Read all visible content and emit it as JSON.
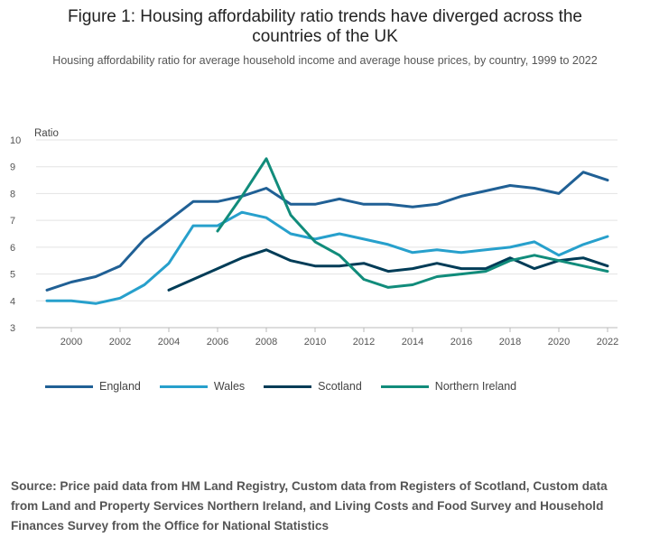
{
  "title_lines": [
    "Figure 1: Housing affordability ratio trends have diverged across the",
    "countries of the UK"
  ],
  "subtitle": "Housing affordability ratio for average household income and average house prices, by country, 1999 to 2022",
  "source": "Source: Price paid data from HM Land Registry, Custom data from Registers of Scotland, Custom data from Land and Property Services Northern Ireland, and Living Costs and Food Survey and Household Finances Survey from the Office for National Statistics",
  "chart_data": {
    "type": "line",
    "title": "Figure 1: Housing affordability ratio trends have diverged across the countries of the UK",
    "subtitle": "Housing affordability ratio for average household income and average house prices, by country, 1999 to 2022",
    "ylabel": "Ratio",
    "xlabel": "",
    "ylim": [
      3,
      10
    ],
    "xlim": [
      1999,
      2022
    ],
    "yticks": [
      "3",
      "4",
      "5",
      "6",
      "7",
      "8",
      "9",
      "10"
    ],
    "xticks": [
      "2000",
      "2002",
      "2004",
      "2006",
      "2008",
      "2010",
      "2012",
      "2014",
      "2016",
      "2018",
      "2020",
      "2022"
    ],
    "grid": "horizontal",
    "legend_position": "bottom-left",
    "x": [
      1999,
      2000,
      2001,
      2002,
      2003,
      2004,
      2005,
      2006,
      2007,
      2008,
      2009,
      2010,
      2011,
      2012,
      2013,
      2014,
      2015,
      2016,
      2017,
      2018,
      2019,
      2020,
      2021,
      2022
    ],
    "series": [
      {
        "name": "England",
        "color": "#206095",
        "values": [
          4.4,
          4.7,
          4.9,
          5.3,
          6.3,
          7.0,
          7.7,
          7.7,
          7.9,
          8.2,
          7.6,
          7.6,
          7.8,
          7.6,
          7.6,
          7.5,
          7.6,
          7.9,
          8.1,
          8.3,
          8.2,
          8.0,
          8.8,
          8.5
        ]
      },
      {
        "name": "Wales",
        "color": "#27a0cc",
        "values": [
          4.0,
          4.0,
          3.9,
          4.1,
          4.6,
          5.4,
          6.8,
          6.8,
          7.3,
          7.1,
          6.5,
          6.3,
          6.5,
          6.3,
          6.1,
          5.8,
          5.9,
          5.8,
          5.9,
          6.0,
          6.2,
          5.7,
          6.1,
          6.4
        ]
      },
      {
        "name": "Scotland",
        "color": "#003c57",
        "values": [
          null,
          null,
          null,
          null,
          null,
          4.4,
          4.8,
          5.2,
          5.6,
          5.9,
          5.5,
          5.3,
          5.3,
          5.4,
          5.1,
          5.2,
          5.4,
          5.2,
          5.2,
          5.6,
          5.2,
          5.5,
          5.6,
          5.3
        ]
      },
      {
        "name": "Northern Ireland",
        "color": "#118c7b",
        "values": [
          null,
          null,
          null,
          null,
          null,
          null,
          null,
          6.6,
          7.9,
          9.3,
          7.2,
          6.2,
          5.7,
          4.8,
          4.5,
          4.6,
          4.9,
          5.0,
          5.1,
          5.5,
          5.7,
          5.5,
          5.3,
          5.1
        ]
      }
    ]
  }
}
